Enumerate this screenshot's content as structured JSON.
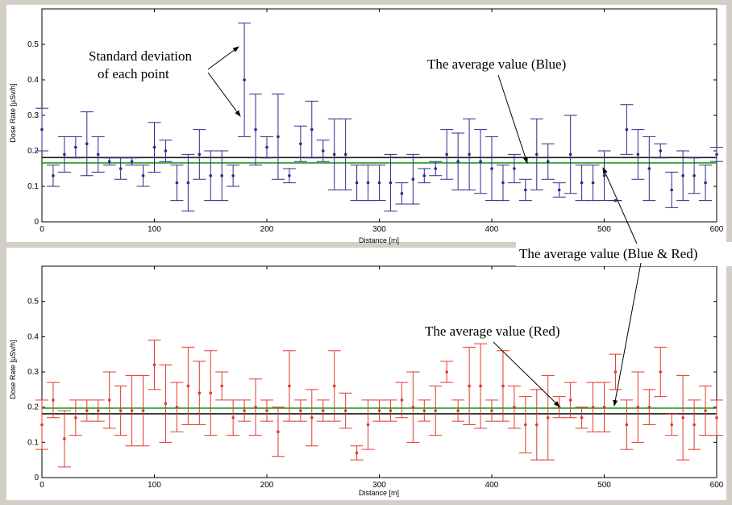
{
  "chart_data": [
    {
      "type": "scatter",
      "error_bars": true,
      "xlabel": "Distance [m]",
      "ylabel": "Dose Rate [µSv/h]",
      "xlim": [
        0,
        600
      ],
      "ylim": [
        0,
        0.6
      ],
      "xticks": [
        "0",
        "100",
        "200",
        "300",
        "400",
        "500",
        "600"
      ],
      "yticks": [
        "0",
        "0.1",
        "0.2",
        "0.3",
        "0.4",
        "0.5"
      ],
      "grid": false,
      "color": "#2b2b8c",
      "x": [
        0,
        10,
        20,
        30,
        40,
        50,
        60,
        70,
        80,
        90,
        100,
        110,
        120,
        130,
        140,
        150,
        160,
        170,
        180,
        190,
        200,
        210,
        220,
        230,
        240,
        250,
        260,
        270,
        280,
        290,
        300,
        310,
        320,
        330,
        340,
        350,
        360,
        370,
        380,
        390,
        400,
        410,
        420,
        430,
        440,
        450,
        460,
        470,
        480,
        490,
        500,
        510,
        520,
        530,
        540,
        550,
        560,
        570,
        580,
        590,
        600
      ],
      "y": [
        0.26,
        0.13,
        0.19,
        0.21,
        0.22,
        0.19,
        0.17,
        0.15,
        0.17,
        0.13,
        0.21,
        0.2,
        0.11,
        0.11,
        0.19,
        0.13,
        0.13,
        0.13,
        0.4,
        0.26,
        0.21,
        0.24,
        0.13,
        0.22,
        0.26,
        0.2,
        0.19,
        0.19,
        0.11,
        0.11,
        0.11,
        0.11,
        0.08,
        0.12,
        0.13,
        0.15,
        0.19,
        0.17,
        0.19,
        0.17,
        0.15,
        0.11,
        0.15,
        0.09,
        0.19,
        0.17,
        0.09,
        0.19,
        0.11,
        0.11,
        0.13,
        0.06,
        0.26,
        0.19,
        0.15,
        0.2,
        0.09,
        0.13,
        0.13,
        0.11,
        0.19
      ],
      "error": [
        0.06,
        0.03,
        0.05,
        0.03,
        0.09,
        0.05,
        0.01,
        0.03,
        0.01,
        0.03,
        0.07,
        0.03,
        0.05,
        0.08,
        0.07,
        0.07,
        0.07,
        0.03,
        0.16,
        0.1,
        0.03,
        0.12,
        0.02,
        0.05,
        0.08,
        0.03,
        0.1,
        0.1,
        0.05,
        0.05,
        0.05,
        0.08,
        0.03,
        0.07,
        0.02,
        0.02,
        0.07,
        0.08,
        0.1,
        0.09,
        0.09,
        0.05,
        0.04,
        0.03,
        0.1,
        0.05,
        0.02,
        0.11,
        0.05,
        0.05,
        0.07,
        0.0,
        0.07,
        0.07,
        0.09,
        0.02,
        0.05,
        0.07,
        0.05,
        0.05,
        0.02
      ],
      "hlines": [
        {
          "y": 0.181,
          "color": "#1a1a1a"
        },
        {
          "y": 0.166,
          "color": "#1a9e1a"
        }
      ],
      "annotations": [
        {
          "text": "Standard deviation",
          "line": 1
        },
        {
          "text": "of each point",
          "line": 2
        },
        {
          "text": "The average value (Blue)"
        }
      ]
    },
    {
      "type": "scatter",
      "error_bars": true,
      "xlabel": "Distance [m]",
      "ylabel": "Dose Rate [µSv/h]",
      "xlim": [
        0,
        600
      ],
      "ylim": [
        0,
        0.6
      ],
      "xticks": [
        "0",
        "100",
        "200",
        "300",
        "400",
        "500",
        "600"
      ],
      "yticks": [
        "0",
        "0.1",
        "0.2",
        "0.3",
        "0.4",
        "0.5"
      ],
      "grid": false,
      "color": "#e03a2a",
      "x": [
        0,
        10,
        20,
        30,
        40,
        50,
        60,
        70,
        80,
        90,
        100,
        110,
        120,
        130,
        140,
        150,
        160,
        170,
        180,
        190,
        200,
        210,
        220,
        230,
        240,
        250,
        260,
        270,
        280,
        290,
        300,
        310,
        320,
        330,
        340,
        350,
        360,
        370,
        380,
        390,
        400,
        410,
        420,
        430,
        440,
        450,
        460,
        470,
        480,
        490,
        500,
        510,
        520,
        530,
        540,
        550,
        560,
        570,
        580,
        590,
        600
      ],
      "y": [
        0.15,
        0.22,
        0.11,
        0.17,
        0.19,
        0.19,
        0.22,
        0.19,
        0.19,
        0.19,
        0.32,
        0.21,
        0.2,
        0.26,
        0.24,
        0.24,
        0.26,
        0.17,
        0.19,
        0.2,
        0.19,
        0.13,
        0.26,
        0.19,
        0.17,
        0.19,
        0.26,
        0.19,
        0.07,
        0.15,
        0.19,
        0.19,
        0.22,
        0.2,
        0.19,
        0.19,
        0.3,
        0.19,
        0.26,
        0.26,
        0.19,
        0.26,
        0.2,
        0.15,
        0.15,
        0.17,
        0.2,
        0.22,
        0.17,
        0.2,
        0.2,
        0.3,
        0.15,
        0.2,
        0.2,
        0.3,
        0.15,
        0.17,
        0.15,
        0.19,
        0.17
      ],
      "error": [
        0.07,
        0.05,
        0.08,
        0.05,
        0.03,
        0.03,
        0.08,
        0.07,
        0.1,
        0.1,
        0.07,
        0.11,
        0.07,
        0.11,
        0.09,
        0.12,
        0.04,
        0.05,
        0.03,
        0.08,
        0.03,
        0.07,
        0.1,
        0.03,
        0.08,
        0.03,
        0.1,
        0.05,
        0.02,
        0.07,
        0.03,
        0.03,
        0.05,
        0.1,
        0.03,
        0.07,
        0.03,
        0.03,
        0.11,
        0.12,
        0.03,
        0.1,
        0.06,
        0.08,
        0.1,
        0.12,
        0.03,
        0.05,
        0.03,
        0.07,
        0.07,
        0.05,
        0.07,
        0.1,
        0.05,
        0.07,
        0.03,
        0.12,
        0.07,
        0.07,
        0.05
      ],
      "hlines": [
        {
          "y": 0.181,
          "color": "#1a1a1a"
        },
        {
          "y": 0.197,
          "color": "#1a9e1a"
        }
      ],
      "annotations": [
        {
          "text": "The average value (Blue & Red)"
        },
        {
          "text": "The average value (Red)"
        }
      ]
    }
  ]
}
